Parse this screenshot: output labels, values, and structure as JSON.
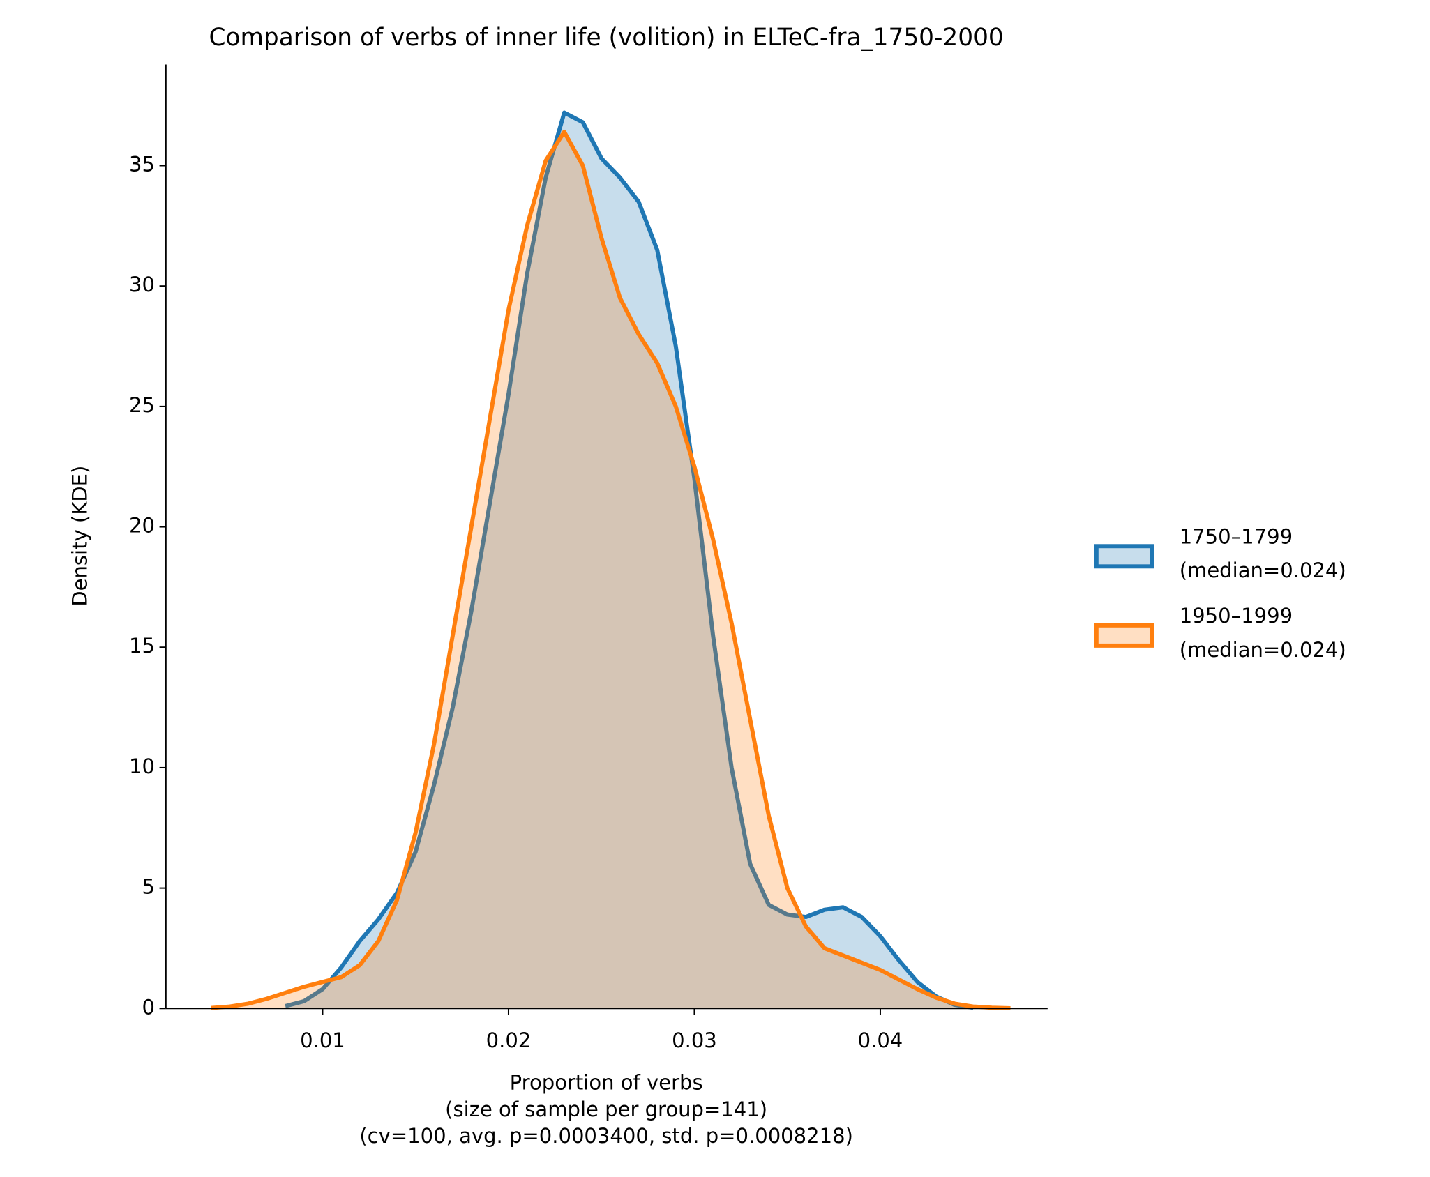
{
  "chart_data": {
    "type": "kde",
    "title": "Comparison of verbs of inner life (volition) in ELTeC-fra_1750-2000",
    "xlabel": [
      "Proportion of verbs",
      "(size of sample per group=141)",
      "(cv=100, avg. p=0.0003400, std. p=0.0008218)"
    ],
    "ylabel": "Density (KDE)",
    "x": [
      0.004,
      0.005,
      0.006,
      0.007,
      0.008,
      0.009,
      0.01,
      0.011,
      0.012,
      0.013,
      0.014,
      0.015,
      0.016,
      0.017,
      0.018,
      0.019,
      0.02,
      0.021,
      0.022,
      0.023,
      0.024,
      0.025,
      0.026,
      0.027,
      0.028,
      0.029,
      0.03,
      0.031,
      0.032,
      0.033,
      0.034,
      0.035,
      0.036,
      0.037,
      0.038,
      0.039,
      0.04,
      0.041,
      0.042,
      0.043,
      0.044,
      0.045,
      0.046,
      0.047
    ],
    "series": [
      {
        "name": "1750–1799",
        "median_label": "(median=0.024)",
        "color": "#1f77b4",
        "values": [
          null,
          null,
          null,
          null,
          0.1,
          0.3,
          0.8,
          1.7,
          2.8,
          3.7,
          4.8,
          6.5,
          9.3,
          12.5,
          16.5,
          21,
          25.5,
          30.5,
          34.5,
          37.2,
          36.8,
          35.3,
          34.5,
          33.5,
          31.5,
          27.5,
          22,
          15.5,
          10,
          6,
          4.3,
          3.9,
          3.8,
          4.1,
          4.2,
          3.8,
          3.0,
          2.0,
          1.1,
          0.5,
          0.15,
          0.03,
          null,
          null
        ]
      },
      {
        "name": "1950–1999",
        "median_label": "(median=0.024)",
        "color": "#ff7f0e",
        "values": [
          0.02,
          0.08,
          0.2,
          0.4,
          0.65,
          0.9,
          1.1,
          1.3,
          1.8,
          2.8,
          4.5,
          7.3,
          11,
          15.5,
          20,
          24.5,
          29,
          32.5,
          35.2,
          36.4,
          35,
          32,
          29.5,
          28,
          26.8,
          25,
          22.5,
          19.5,
          16,
          12,
          8,
          5,
          3.4,
          2.5,
          2.2,
          1.9,
          1.6,
          1.2,
          0.8,
          0.45,
          0.2,
          0.08,
          0.03,
          0.01
        ]
      }
    ],
    "xlim": [
      0.00157,
      0.049
    ],
    "ylim": [
      0,
      39.2
    ],
    "xticks": [
      0.01,
      0.02,
      0.03,
      0.04
    ],
    "yticks": [
      0,
      5,
      10,
      15,
      20,
      25,
      30,
      35
    ],
    "fill_opacity": 0.25,
    "legend": "right"
  }
}
